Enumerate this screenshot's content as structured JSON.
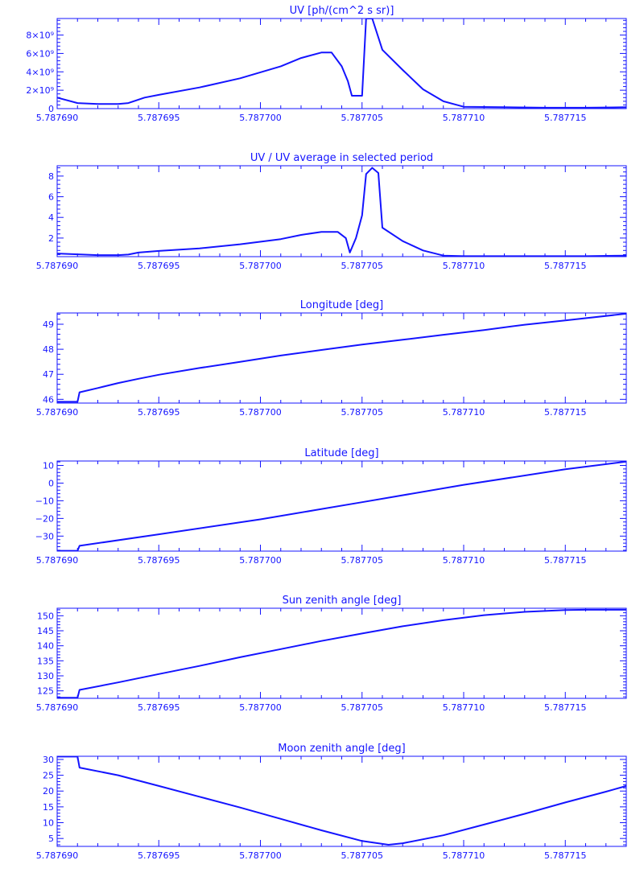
{
  "colors": {
    "ink": "#1414ff",
    "background": "#ffffff"
  },
  "chart_data": [
    {
      "type": "line",
      "title": "UV [ph/(cm^2 s sr)]",
      "xlim": [
        5.78769,
        5.787718
      ],
      "ylim": [
        0,
        9800000000
      ],
      "x_ticks": [
        5.78769,
        5.787695,
        5.7877,
        5.787705,
        5.78771,
        5.787715
      ],
      "x_tick_labels": [
        "5.787690",
        "5.787695",
        "5.787700",
        "5.787705",
        "5.787710",
        "5.787715"
      ],
      "y_ticks": [
        0,
        2000000000,
        4000000000,
        6000000000,
        8000000000
      ],
      "y_tick_labels": [
        "0",
        "2×10⁹",
        "4×10⁹",
        "6×10⁹",
        "8×10⁹"
      ],
      "x": [
        5.78769,
        5.787691,
        5.787692,
        5.787693,
        5.7876935,
        5.7876943,
        5.787695,
        5.787697,
        5.787699,
        5.787701,
        5.787702,
        5.787703,
        5.7877035,
        5.787704,
        5.7877043,
        5.7877045,
        5.787705,
        5.7877052,
        5.7877055,
        5.787706,
        5.787707,
        5.787708,
        5.787709,
        5.78771,
        5.787712,
        5.787714,
        5.787716,
        5.787718
      ],
      "y": [
        1200000000,
        600000000,
        500000000,
        500000000,
        600000000,
        1200000000,
        1500000000,
        2300000000,
        3300000000,
        4600000000,
        5500000000,
        6100000000,
        6100000000,
        4600000000,
        3000000000,
        1400000000,
        1400000000,
        9800000000,
        9800000000,
        6400000000,
        4200000000,
        2100000000,
        800000000,
        200000000,
        150000000,
        100000000,
        100000000,
        150000000
      ]
    },
    {
      "type": "line",
      "title": "UV / UV average in selected period",
      "xlim": [
        5.78769,
        5.787718
      ],
      "ylim": [
        0.2,
        9
      ],
      "x_ticks": [
        5.78769,
        5.787695,
        5.7877,
        5.787705,
        5.78771,
        5.787715
      ],
      "x_tick_labels": [
        "5.787690",
        "5.787695",
        "5.787700",
        "5.787705",
        "5.787710",
        "5.787715"
      ],
      "y_ticks": [
        2,
        4,
        6,
        8
      ],
      "y_tick_labels": [
        "2",
        "4",
        "6",
        "8"
      ],
      "x": [
        5.78769,
        5.787692,
        5.787693,
        5.7876935,
        5.787694,
        5.787695,
        5.787697,
        5.787699,
        5.787701,
        5.787702,
        5.787703,
        5.7877038,
        5.7877042,
        5.7877044,
        5.7877047,
        5.787705,
        5.7877052,
        5.7877055,
        5.7877058,
        5.787706,
        5.787707,
        5.787708,
        5.787709,
        5.78771,
        5.787712,
        5.787716,
        5.787718
      ],
      "y": [
        0.5,
        0.35,
        0.35,
        0.4,
        0.6,
        0.75,
        1.0,
        1.4,
        1.9,
        2.3,
        2.6,
        2.6,
        2.0,
        0.6,
        2.0,
        4.2,
        8.2,
        8.8,
        8.3,
        3.0,
        1.7,
        0.8,
        0.3,
        0.25,
        0.25,
        0.25,
        0.3
      ]
    },
    {
      "type": "line",
      "title": "Longitude [deg]",
      "xlim": [
        5.78769,
        5.787718
      ],
      "ylim": [
        45.85,
        49.45
      ],
      "x_ticks": [
        5.78769,
        5.787695,
        5.7877,
        5.787705,
        5.78771,
        5.787715
      ],
      "x_tick_labels": [
        "5.787690",
        "5.787695",
        "5.787700",
        "5.787705",
        "5.787710",
        "5.787715"
      ],
      "y_ticks": [
        46,
        47,
        48,
        49
      ],
      "y_tick_labels": [
        "46",
        "47",
        "48",
        "49"
      ],
      "x": [
        5.78769,
        5.787691,
        5.7876911,
        5.787692,
        5.787693,
        5.787694,
        5.787695,
        5.787697,
        5.787699,
        5.787701,
        5.787703,
        5.787705,
        5.787707,
        5.787709,
        5.787711,
        5.787713,
        5.787715,
        5.787718
      ],
      "y": [
        45.9,
        45.9,
        46.28,
        46.45,
        46.65,
        46.82,
        46.98,
        47.25,
        47.5,
        47.75,
        47.97,
        48.19,
        48.38,
        48.58,
        48.77,
        48.98,
        49.15,
        49.42
      ]
    },
    {
      "type": "line",
      "title": "Latitude [deg]",
      "xlim": [
        5.78769,
        5.787718
      ],
      "ylim": [
        -38.5,
        12.5
      ],
      "x_ticks": [
        5.78769,
        5.787695,
        5.7877,
        5.787705,
        5.78771,
        5.787715
      ],
      "x_tick_labels": [
        "5.787690",
        "5.787695",
        "5.787700",
        "5.787705",
        "5.787710",
        "5.787715"
      ],
      "y_ticks": [
        -30,
        -20,
        -10,
        0,
        10
      ],
      "y_tick_labels": [
        "−30",
        "−20",
        "−10",
        "0",
        "10"
      ],
      "x": [
        5.78769,
        5.787691,
        5.7876911,
        5.787695,
        5.7877,
        5.787705,
        5.78771,
        5.787715,
        5.787718
      ],
      "y": [
        -38.3,
        -38.3,
        -35.5,
        -29.0,
        -20.5,
        -10.8,
        -1.0,
        7.8,
        12.2
      ]
    },
    {
      "type": "line",
      "title": "Sun zenith angle [deg]",
      "xlim": [
        5.78769,
        5.787718
      ],
      "ylim": [
        122.5,
        152.5
      ],
      "x_ticks": [
        5.78769,
        5.787695,
        5.7877,
        5.787705,
        5.78771,
        5.787715
      ],
      "x_tick_labels": [
        "5.787690",
        "5.787695",
        "5.787700",
        "5.787705",
        "5.787710",
        "5.787715"
      ],
      "y_ticks": [
        125,
        130,
        135,
        140,
        145,
        150
      ],
      "y_tick_labels": [
        "125",
        "130",
        "135",
        "140",
        "145",
        "150"
      ],
      "x": [
        5.78769,
        5.787691,
        5.7876911,
        5.787693,
        5.787695,
        5.787697,
        5.787699,
        5.787701,
        5.787703,
        5.787705,
        5.787707,
        5.787709,
        5.787711,
        5.787713,
        5.787715,
        5.787716,
        5.787718
      ],
      "y": [
        122.7,
        122.7,
        125.3,
        127.8,
        130.6,
        133.3,
        136.2,
        138.9,
        141.6,
        144.1,
        146.5,
        148.5,
        150.2,
        151.3,
        151.9,
        152.0,
        152.0
      ]
    },
    {
      "type": "line",
      "title": "Moon zenith angle [deg]",
      "xlim": [
        5.78769,
        5.787718
      ],
      "ylim": [
        2.5,
        31
      ],
      "x_ticks": [
        5.78769,
        5.787695,
        5.7877,
        5.787705,
        5.78771,
        5.787715
      ],
      "x_tick_labels": [
        "5.787690",
        "5.787695",
        "5.787700",
        "5.787705",
        "5.787710",
        "5.787715"
      ],
      "y_ticks": [
        5,
        10,
        15,
        20,
        25,
        30
      ],
      "y_tick_labels": [
        "5",
        "10",
        "15",
        "20",
        "25",
        "30"
      ],
      "x": [
        5.78769,
        5.787691,
        5.7876911,
        5.787693,
        5.787695,
        5.787697,
        5.787699,
        5.787701,
        5.787703,
        5.787705,
        5.7877063,
        5.787707,
        5.787709,
        5.787711,
        5.787713,
        5.787715,
        5.787717,
        5.787718
      ],
      "y": [
        30.9,
        30.9,
        27.4,
        25.0,
        21.6,
        18.2,
        14.8,
        11.2,
        7.6,
        4.2,
        3.0,
        3.5,
        6.0,
        9.4,
        12.8,
        16.4,
        19.8,
        21.6
      ]
    }
  ]
}
